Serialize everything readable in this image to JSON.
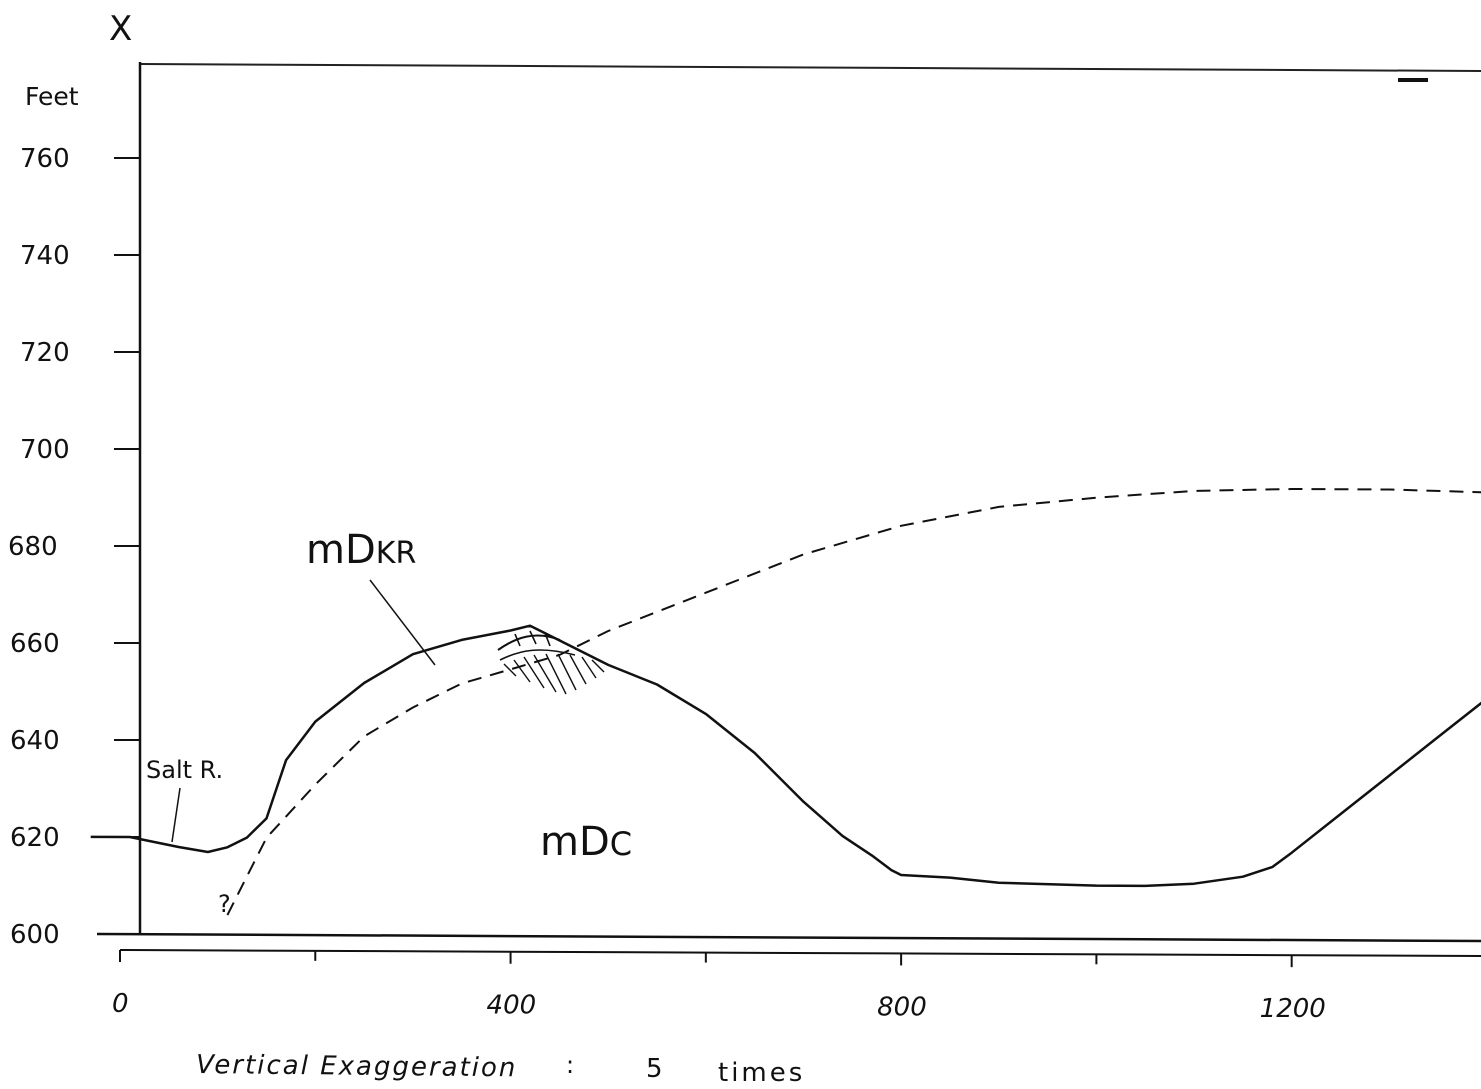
{
  "corner_label": "X",
  "y_unit": "Feet",
  "y_ticks": [
    {
      "value": 600,
      "label": "600"
    },
    {
      "value": 620,
      "label": "620"
    },
    {
      "value": 640,
      "label": "640"
    },
    {
      "value": 660,
      "label": "660"
    },
    {
      "value": 680,
      "label": "680"
    },
    {
      "value": 700,
      "label": "700"
    },
    {
      "value": 720,
      "label": "720"
    },
    {
      "value": 740,
      "label": "740"
    },
    {
      "value": 760,
      "label": "760"
    }
  ],
  "x_ticks_labeled": [
    {
      "value": 0,
      "label": "0"
    },
    {
      "value": 400,
      "label": "400"
    },
    {
      "value": 800,
      "label": "800"
    },
    {
      "value": 1200,
      "label": "1200"
    }
  ],
  "x_ticks_minor": [
    200,
    600,
    1000,
    1400
  ],
  "annotations": {
    "mdkr_main": "mD",
    "mdkr_sub": "KR",
    "mdc_main": "mD",
    "mdc_sub": "C",
    "salt_river": "Salt R.",
    "question": "?"
  },
  "footer": {
    "caption": "Vertical Exaggeration",
    "colon": ":",
    "value": "5",
    "unit": "times"
  },
  "chart_data": {
    "type": "line",
    "ylabel": "Feet",
    "xlim": [
      0,
      1400
    ],
    "ylim": [
      600,
      770
    ],
    "series": [
      {
        "style": "solid",
        "x": [
          -30,
          10,
          35,
          60,
          90,
          110,
          130,
          150,
          170,
          200,
          250,
          300,
          350,
          400,
          420,
          430,
          450,
          500,
          550,
          600,
          650,
          700,
          740,
          770,
          790,
          800,
          850,
          900,
          1000,
          1050,
          1100,
          1150,
          1180,
          1200,
          1250,
          1300,
          1350,
          1400
        ],
        "y": [
          620,
          620,
          619,
          618,
          617,
          618,
          620,
          624,
          636,
          644,
          652,
          658,
          661,
          663,
          664,
          663,
          661,
          656,
          652,
          646,
          638,
          628,
          621,
          617,
          614,
          613,
          612.5,
          611.5,
          611,
          611,
          611.5,
          613,
          615,
          618,
          626,
          634,
          642,
          650
        ]
      },
      {
        "style": "dashed",
        "x": [
          110,
          130,
          150,
          200,
          250,
          300,
          350,
          400,
          450,
          500,
          600,
          700,
          800,
          900,
          1000,
          1100,
          1200,
          1300,
          1400
        ],
        "y": [
          604,
          612,
          620,
          631,
          641,
          647,
          652,
          655,
          658,
          663,
          671,
          679,
          685,
          689,
          691,
          692.5,
          693,
          693,
          692.5
        ]
      }
    ]
  }
}
